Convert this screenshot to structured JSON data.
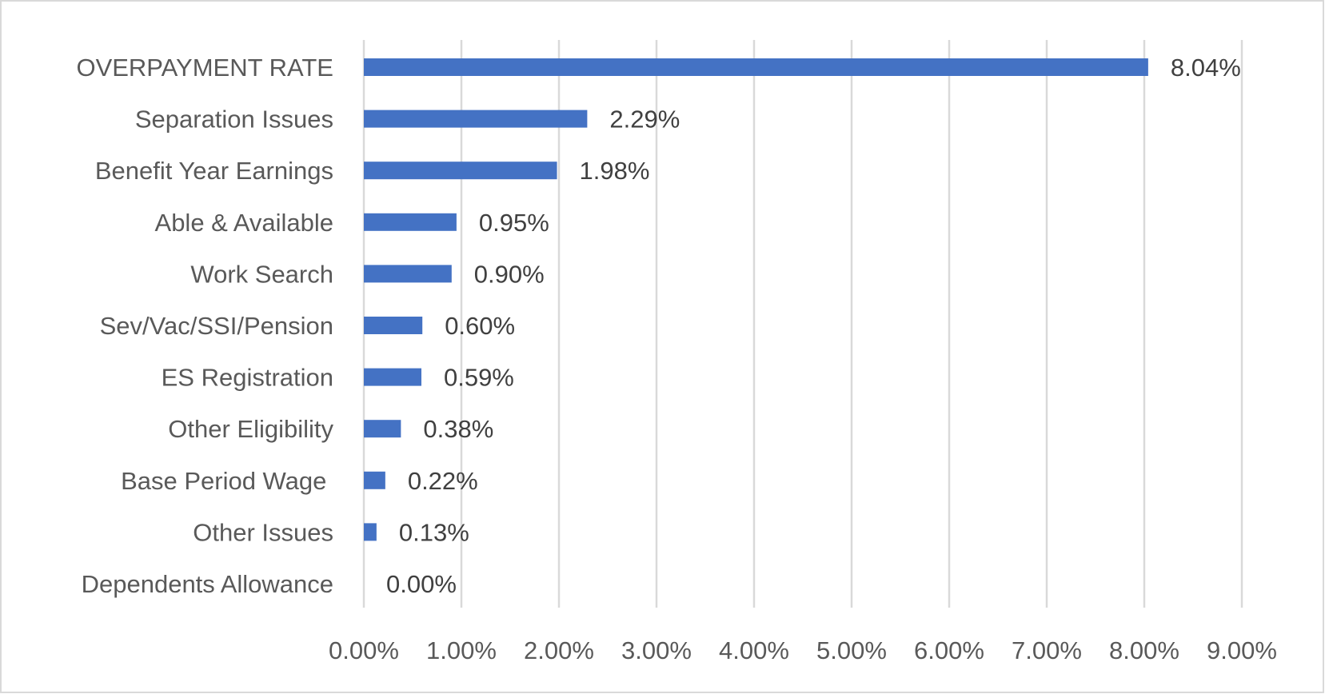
{
  "chart_data": {
    "type": "bar",
    "orientation": "horizontal",
    "title": "",
    "xlabel": "",
    "ylabel": "",
    "categories": [
      "OVERPAYMENT RATE",
      "Separation Issues",
      "Benefit Year Earnings",
      "Able & Available",
      "Work Search",
      "Sev/Vac/SSI/Pension",
      "ES Registration",
      "Other Eligibility",
      "Base Period Wage ",
      "Other Issues",
      "Dependents Allowance"
    ],
    "values": [
      8.04,
      2.29,
      1.98,
      0.95,
      0.9,
      0.6,
      0.59,
      0.38,
      0.22,
      0.13,
      0.0
    ],
    "data_labels": [
      "8.04%",
      "2.29%",
      "1.98%",
      "0.95%",
      "0.90%",
      "0.60%",
      "0.59%",
      "0.38%",
      "0.22%",
      "0.13%",
      "0.00%"
    ],
    "xlim": [
      0,
      9
    ],
    "x_ticks": [
      "0.00%",
      "1.00%",
      "2.00%",
      "3.00%",
      "4.00%",
      "5.00%",
      "6.00%",
      "7.00%",
      "8.00%",
      "9.00%"
    ],
    "grid": "vertical",
    "legend": "none",
    "colors": {
      "bar": "#4472C4",
      "grid": "#D9D9D9",
      "label": "#595959",
      "data_label": "#404040"
    }
  }
}
